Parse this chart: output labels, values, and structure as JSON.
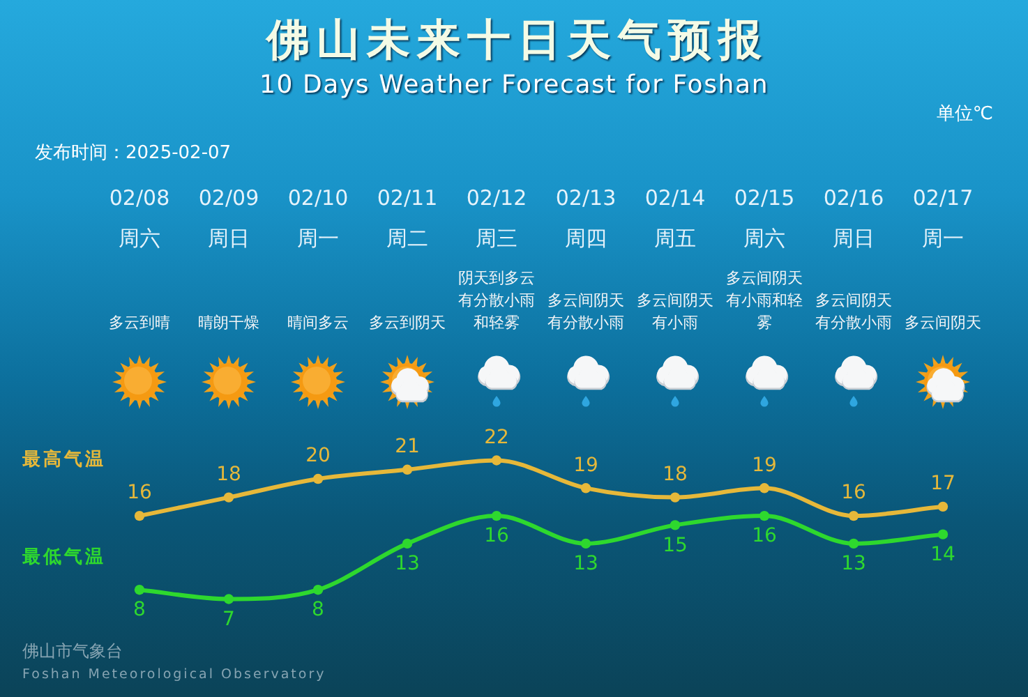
{
  "chart_data": {
    "type": "line",
    "title": "佛山未来十日天气预报",
    "subtitle": "10 Days Weather Forecast for Foshan",
    "ylabel": "单位℃",
    "categories": [
      "02/08\n周六",
      "02/09\n周日",
      "02/10\n周一",
      "02/11\n周二",
      "02/12\n周三",
      "02/13\n周四",
      "02/14\n周五",
      "02/15\n周六",
      "02/16\n周日",
      "02/17\n周一"
    ],
    "series": [
      {
        "name": "最高气温",
        "color": "#e6b83a",
        "values": [
          16,
          18,
          20,
          21,
          22,
          19,
          18,
          19,
          16,
          17
        ]
      },
      {
        "name": "最低气温",
        "color": "#2ed82e",
        "values": [
          8,
          7,
          8,
          13,
          16,
          13,
          15,
          16,
          13,
          14
        ]
      }
    ],
    "data_labels": true,
    "marker": "circle",
    "line_style": "solid",
    "tick_labels": "x",
    "annotations": [
      "多云到晴",
      "晴朗干燥",
      "晴间多云",
      "多云到阴天",
      "阴天到多云有分散小雨和轻雾",
      "多云间阴天有分散小雨",
      "多云间阴天有小雨",
      "多云间阴天有小雨和轻雾",
      "多云间阴天有分散小雨",
      "多云间阴天",
      "发布时间：2025-02-07",
      "佛山市气象台",
      "Foshan Meteorological Observatory"
    ]
  }
}
